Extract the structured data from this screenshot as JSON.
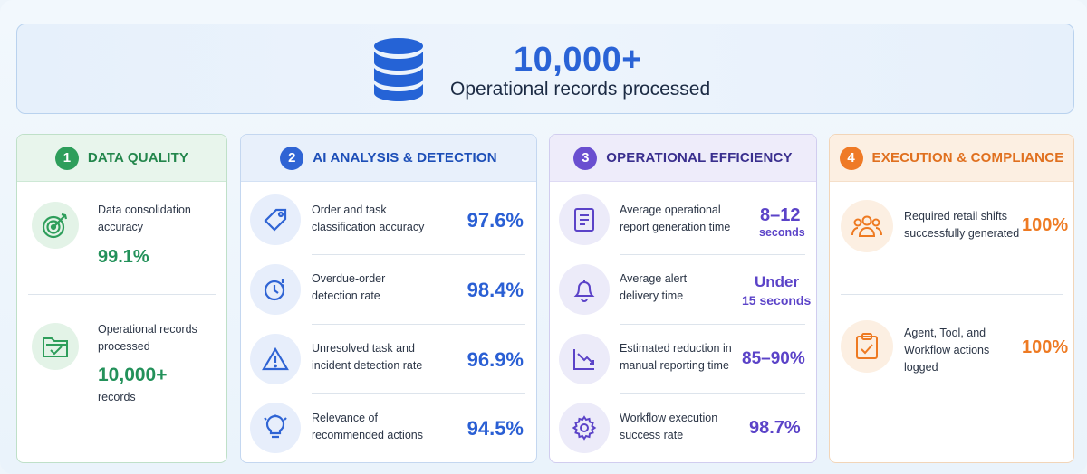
{
  "hero": {
    "number": "10,000+",
    "caption": "Operational records processed",
    "icon": "database-icon"
  },
  "colors": {
    "blue": "#2a63d6",
    "green": "#23915a",
    "purple": "#5b43c8",
    "orange": "#ee7a22"
  },
  "sections": [
    {
      "number": "1",
      "title": "DATA QUALITY",
      "metrics": [
        {
          "icon": "target-icon",
          "label_line1": "Data consolidation",
          "label_line2": "accuracy",
          "value": "99.1%"
        },
        {
          "icon": "folder-check-icon",
          "label_line1": "Operational records",
          "label_line2": "processed",
          "value": "10,000+",
          "unit": "records"
        }
      ]
    },
    {
      "number": "2",
      "title": "AI ANALYSIS & DETECTION",
      "metrics": [
        {
          "icon": "tag-icon",
          "label_line1": "Order and task",
          "label_line2": "classification accuracy",
          "value": "97.6%"
        },
        {
          "icon": "clock-alert-icon",
          "label_line1": "Overdue-order",
          "label_line2": "detection rate",
          "value": "98.4%"
        },
        {
          "icon": "warning-icon",
          "label_line1": "Unresolved task and",
          "label_line2": "incident detection rate",
          "value": "96.9%"
        },
        {
          "icon": "lightbulb-icon",
          "label_line1": "Relevance of",
          "label_line2": "recommended actions",
          "value": "94.5%"
        }
      ]
    },
    {
      "number": "3",
      "title": "OPERATIONAL EFFICIENCY",
      "metrics": [
        {
          "icon": "report-icon",
          "label_line1": "Average operational",
          "label_line2": "report generation time",
          "value": "8–12",
          "unit": "seconds"
        },
        {
          "icon": "bell-icon",
          "label_line1": "Average alert",
          "label_line2": "delivery time",
          "value": "Under",
          "unit": "15 seconds"
        },
        {
          "icon": "trend-down-icon",
          "label_line1": "Estimated reduction in",
          "label_line2": "manual reporting time",
          "value": "85–90%"
        },
        {
          "icon": "gear-icon",
          "label_line1": "Workflow execution",
          "label_line2": "success rate",
          "value": "98.7%"
        }
      ]
    },
    {
      "number": "4",
      "title": "EXECUTION & COMPLIANCE",
      "metrics": [
        {
          "icon": "team-icon",
          "label_line1": "Required retail shifts",
          "label_line2": "successfully generated",
          "value": "100%"
        },
        {
          "icon": "clipboard-check-icon",
          "label_line1": "Agent, Tool, and",
          "label_line2": "Workflow actions",
          "label_line3": "logged",
          "value": "100%"
        }
      ]
    }
  ]
}
